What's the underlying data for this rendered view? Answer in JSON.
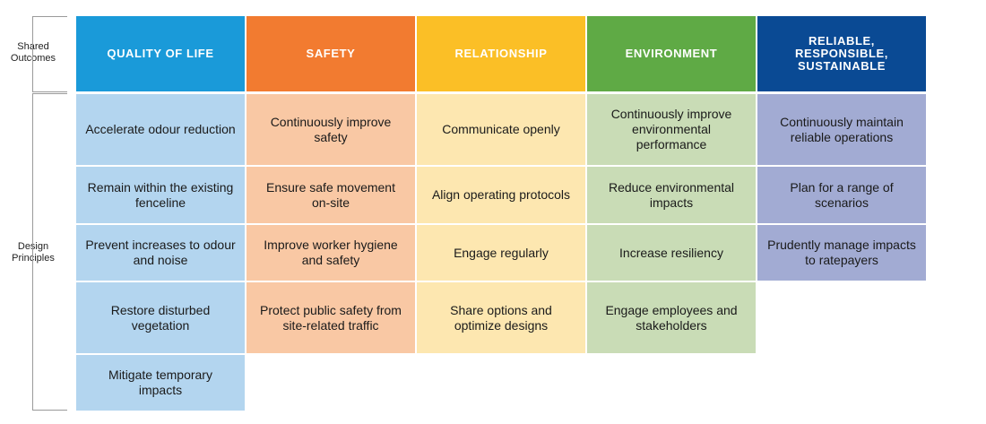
{
  "side_labels": {
    "shared_outcomes": "Shared Outcomes",
    "design_principles": "Design Principles"
  },
  "columns": [
    {
      "header": "QUALITY OF LIFE",
      "header_color": "#1a9ad9",
      "cell_color": "#b3d5ef",
      "principles": [
        "Accelerate odour reduction",
        "Remain within the existing fenceline",
        "Prevent increases to odour and noise",
        "Restore disturbed vegetation",
        "Mitigate temporary impacts"
      ]
    },
    {
      "header": "SAFETY",
      "header_color": "#f27b30",
      "cell_color": "#f9c8a4",
      "principles": [
        "Continuously improve safety",
        "Ensure safe movement on-site",
        "Improve worker hygiene and safety",
        "Protect public safety from site-related traffic"
      ]
    },
    {
      "header": "RELATIONSHIP",
      "header_color": "#fbbf26",
      "cell_color": "#fde7b0",
      "principles": [
        "Communicate openly",
        "Align operating protocols",
        "Engage regularly",
        "Share options and optimize designs"
      ]
    },
    {
      "header": "ENVIRONMENT",
      "header_color": "#5faa45",
      "cell_color": "#c9dcb6",
      "principles": [
        "Continuously improve environmental performance",
        "Reduce environmental impacts",
        "Increase resiliency",
        "Engage employees and stakeholders"
      ]
    },
    {
      "header": "RELIABLE, RESPONSIBLE, SUSTAINABLE",
      "header_color": "#0a4a94",
      "cell_color": "#a2abd3",
      "principles": [
        "Continuously maintain reliable operations",
        "Plan for a range of scenarios",
        "Prudently manage impacts to ratepayers"
      ]
    }
  ]
}
